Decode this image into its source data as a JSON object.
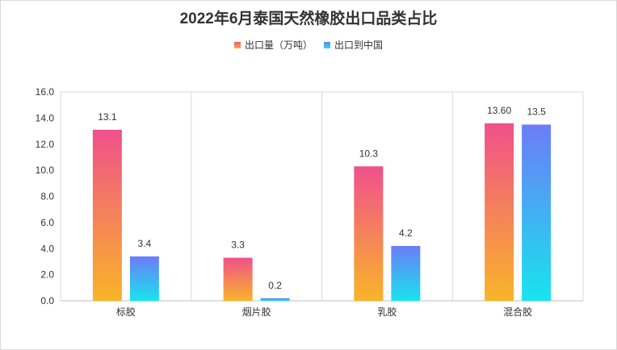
{
  "chart_data": {
    "type": "bar",
    "title": "2022年6月泰国天然橡胶出口品类占比",
    "categories": [
      "标胶",
      "烟片胶",
      "乳胶",
      "混合胶"
    ],
    "series": [
      {
        "name": "出口量（万吨）",
        "values": [
          13.1,
          3.3,
          10.3,
          13.6
        ],
        "labels": [
          "13.1",
          "3.3",
          "10.3",
          "13.60"
        ],
        "gradient": [
          "#f0508c",
          "#f9b428"
        ]
      },
      {
        "name": "出口到中国",
        "values": [
          3.4,
          0.2,
          4.2,
          13.5
        ],
        "labels": [
          "3.4",
          "0.2",
          "4.2",
          "13.5"
        ],
        "gradient": [
          "#6c7cf7",
          "#18e4ee"
        ]
      }
    ],
    "yticks": [
      "0.0",
      "2.0",
      "4.0",
      "6.0",
      "8.0",
      "10.0",
      "12.0",
      "14.0",
      "16.0"
    ],
    "ylim": [
      0,
      16
    ],
    "grid": "vertical category separators",
    "legend": "top-center"
  }
}
